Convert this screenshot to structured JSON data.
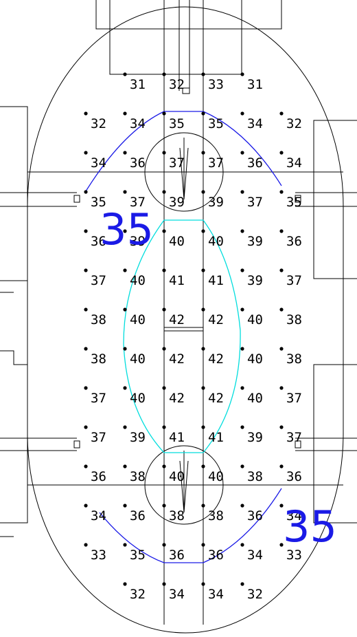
{
  "grid": {
    "text_color": "#000000",
    "rows": [
      [
        {
          "text": "31",
          "color": "#1a1ae6"
        },
        "32",
        "33",
        {
          "text": "31",
          "color": "#1a1ae6"
        }
      ],
      [
        "32",
        "34",
        "35",
        "35",
        "34",
        "32"
      ],
      [
        "34",
        "36",
        "37",
        "37",
        "36",
        "34"
      ],
      [
        "35",
        "37",
        "39",
        "39",
        "37",
        "35"
      ],
      [
        "36",
        "39",
        "40",
        "40",
        "39",
        "36"
      ],
      [
        "37",
        "40",
        "41",
        "41",
        "39",
        "37"
      ],
      [
        "38",
        "40",
        {
          "text": "42",
          "color": "#ff0000"
        },
        {
          "text": "42",
          "color": "#ff0000"
        },
        "40",
        "38"
      ],
      [
        "38",
        "40",
        {
          "text": "42",
          "color": "#ff0000"
        },
        {
          "text": "42",
          "color": "#ff0000"
        },
        "40",
        "38"
      ],
      [
        "37",
        "40",
        {
          "text": "42",
          "color": "#ff0000"
        },
        {
          "text": "42",
          "color": "#ff0000"
        },
        "40",
        "37"
      ],
      [
        "37",
        "39",
        "41",
        "41",
        "39",
        "37"
      ],
      [
        "36",
        "38",
        "40",
        "40",
        "38",
        "36"
      ],
      [
        "34",
        "36",
        "38",
        "38",
        "36",
        "34"
      ],
      [
        "33",
        "35",
        "36",
        "36",
        "34",
        "33"
      ],
      [
        "32",
        "34",
        "34",
        "32"
      ]
    ]
  },
  "contour_labels": [
    "35",
    "35"
  ]
}
